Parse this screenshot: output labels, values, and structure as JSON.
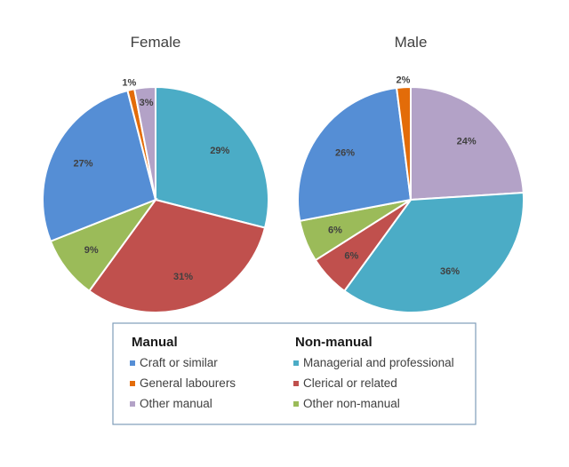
{
  "chart_data": [
    {
      "type": "pie",
      "title": "Female",
      "slices": [
        {
          "label": "Managerial and professional",
          "value": 29,
          "data_label": "29%"
        },
        {
          "label": "Clerical or related",
          "value": 31,
          "data_label": "31%"
        },
        {
          "label": "Other non-manual",
          "value": 9,
          "data_label": "9%"
        },
        {
          "label": "Craft or similar",
          "value": 27,
          "data_label": "27%"
        },
        {
          "label": "General labourers",
          "value": 1,
          "data_label": "1%"
        },
        {
          "label": "Other manual",
          "value": 3,
          "data_label": "3%"
        }
      ]
    },
    {
      "type": "pie",
      "title": "Male",
      "slices": [
        {
          "label": "Other manual",
          "value": 24,
          "data_label": "24%"
        },
        {
          "label": "Managerial and professional",
          "value": 36,
          "data_label": "36%"
        },
        {
          "label": "Clerical or related",
          "value": 6,
          "data_label": "6%"
        },
        {
          "label": "Other non-manual",
          "value": 6,
          "data_label": "6%"
        },
        {
          "label": "Craft or similar",
          "value": 26,
          "data_label": "26%"
        },
        {
          "label": "General labourers",
          "value": 2,
          "data_label": "2%"
        }
      ]
    }
  ],
  "legend": {
    "groups": [
      {
        "heading": "Manual",
        "items": [
          "Craft or similar",
          "General labourers",
          "Other manual"
        ]
      },
      {
        "heading": "Non-manual",
        "items": [
          "Managerial and professional",
          "Clerical or related",
          "Other non-manual"
        ]
      }
    ],
    "placement": "bottom"
  },
  "colors": {
    "Craft or similar": "#558ED5",
    "General labourers": "#E36C09",
    "Other manual": "#B3A2C7",
    "Managerial and professional": "#4BACC6",
    "Clerical or related": "#C0504D",
    "Other non-manual": "#9BBB59"
  }
}
